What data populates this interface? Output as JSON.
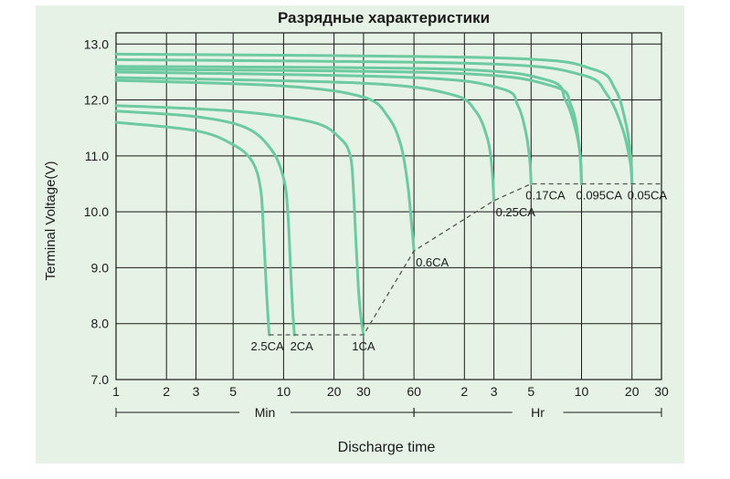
{
  "colors": {
    "plot_background": "#e6f2e5",
    "grid": "#1a1a1a",
    "curve": "#6cc9a0",
    "cutoff_line": "#555555",
    "text": "#1a1a1a"
  },
  "chart_data": {
    "type": "line",
    "title": "Разрядные характеристики",
    "xlabel": "Discharge time",
    "ylabel": "Terminal Voltage(V)",
    "x_scale": "log",
    "xlim_minutes": [
      1,
      1800
    ],
    "ylim": [
      7.0,
      13.2
    ],
    "y_ticks": [
      "7.0",
      "8.0",
      "9.0",
      "10.0",
      "11.0",
      "12.0",
      "13.0"
    ],
    "x_ticks": [
      {
        "label": "1",
        "minutes": 1
      },
      {
        "label": "2",
        "minutes": 2
      },
      {
        "label": "3",
        "minutes": 3
      },
      {
        "label": "5",
        "minutes": 5
      },
      {
        "label": "10",
        "minutes": 10
      },
      {
        "label": "20",
        "minutes": 20
      },
      {
        "label": "30",
        "minutes": 30
      },
      {
        "label": "60",
        "minutes": 60
      },
      {
        "label": "2",
        "minutes": 120
      },
      {
        "label": "3",
        "minutes": 180
      },
      {
        "label": "5",
        "minutes": 300
      },
      {
        "label": "10",
        "minutes": 600
      },
      {
        "label": "20",
        "minutes": 1200
      },
      {
        "label": "30",
        "minutes": 1800
      }
    ],
    "x_groups": [
      {
        "label": "Min",
        "from_minutes": 1,
        "to_minutes": 60
      },
      {
        "label": "Hr",
        "from_minutes": 60,
        "to_minutes": 1800
      }
    ],
    "grid": true,
    "series": [
      {
        "name": "2.5CA",
        "x": [
          1,
          3,
          5,
          6.5,
          7.3,
          7.6,
          7.9,
          8.2
        ],
        "y": [
          11.6,
          11.45,
          11.2,
          10.9,
          10.4,
          9.6,
          8.6,
          7.8
        ]
      },
      {
        "name": "2CA",
        "x": [
          1,
          3,
          6,
          8.5,
          10,
          10.6,
          11,
          11.3,
          11.6
        ],
        "y": [
          11.8,
          11.7,
          11.5,
          11.1,
          10.6,
          10.0,
          9.0,
          8.3,
          7.8
        ]
      },
      {
        "name": "1CA",
        "x": [
          1,
          5,
          15,
          22,
          25,
          26,
          27,
          28,
          29,
          30
        ],
        "y": [
          11.9,
          11.8,
          11.6,
          11.3,
          11.0,
          10.5,
          9.5,
          8.6,
          8.1,
          7.8
        ]
      },
      {
        "name": "0.6CA",
        "x": [
          1,
          10,
          30,
          42,
          50,
          55,
          58,
          60
        ],
        "y": [
          12.35,
          12.25,
          12.05,
          11.7,
          11.2,
          10.5,
          9.8,
          9.3
        ]
      },
      {
        "name": "0.25CA",
        "x": [
          1,
          30,
          100,
          140,
          165,
          175,
          180
        ],
        "y": [
          12.4,
          12.3,
          12.1,
          11.8,
          11.3,
          10.8,
          10.2
        ]
      },
      {
        "name": "0.17CA",
        "x": [
          1,
          60,
          200,
          250,
          280,
          295,
          300
        ],
        "y": [
          12.5,
          12.4,
          12.2,
          11.9,
          11.4,
          10.9,
          10.5
        ]
      },
      {
        "name": "0.095CA",
        "x": [
          1,
          100,
          380,
          480,
          550,
          590,
          600
        ],
        "y": [
          12.6,
          12.55,
          12.35,
          12.0,
          11.5,
          11.0,
          10.5
        ]
      },
      {
        "name": "0.05CA",
        "x": [
          1,
          200,
          700,
          950,
          1100,
          1180,
          1200
        ],
        "y": [
          12.82,
          12.75,
          12.55,
          12.2,
          11.6,
          11.0,
          10.5
        ]
      },
      {
        "name": "",
        "x": [
          1,
          150,
          600,
          850,
          1050,
          1170,
          1200
        ],
        "y": [
          12.72,
          12.65,
          12.45,
          12.1,
          11.5,
          10.9,
          10.5
        ]
      },
      {
        "name": "",
        "x": [
          1,
          100,
          400,
          520,
          580,
          600
        ],
        "y": [
          12.55,
          12.48,
          12.25,
          11.9,
          11.2,
          10.5
        ]
      }
    ],
    "cutoff_line": {
      "x": [
        8.2,
        30,
        60,
        180,
        300,
        600,
        1200,
        1800
      ],
      "y": [
        7.8,
        7.8,
        9.3,
        10.2,
        10.5,
        10.5,
        10.5,
        10.5
      ]
    },
    "annotations": [
      {
        "text": "2.5CA",
        "x": 8.2,
        "y": 7.8
      },
      {
        "text": "2CA",
        "x": 11.6,
        "y": 7.8
      },
      {
        "text": "1CA",
        "x": 30,
        "y": 7.8
      },
      {
        "text": "0.6CA",
        "x": 60,
        "y": 9.3
      },
      {
        "text": "0.25CA",
        "x": 180,
        "y": 10.2
      },
      {
        "text": "0.17CA",
        "x": 300,
        "y": 10.5
      },
      {
        "text": "0.095CA",
        "x": 600,
        "y": 10.5
      },
      {
        "text": "0.05CA",
        "x": 1200,
        "y": 10.5
      }
    ]
  }
}
